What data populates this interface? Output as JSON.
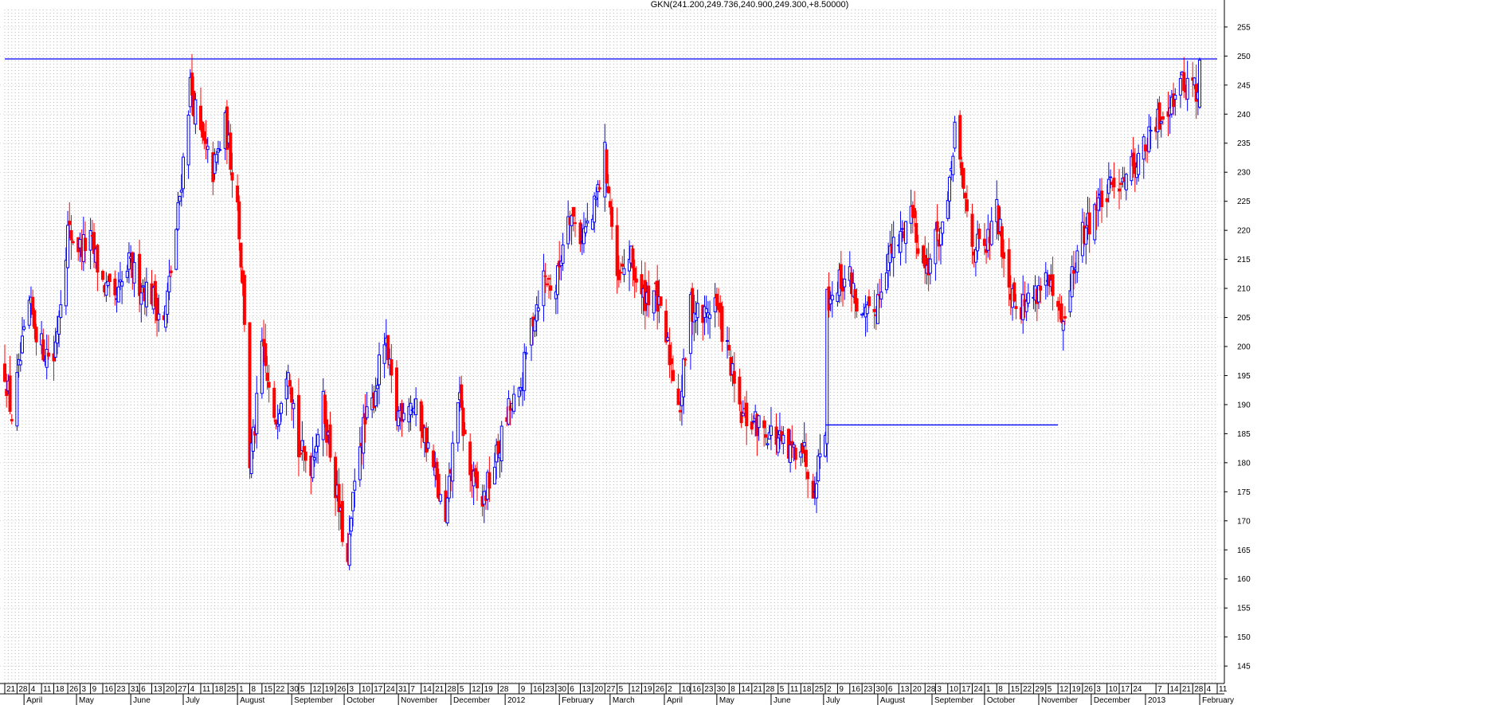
{
  "chart_data": {
    "type": "candlestick",
    "title": "GKN(241.200,249.736,240.900,249.300,+8.50000)",
    "ylim": [
      142,
      258
    ],
    "y_ticks": [
      145,
      150,
      155,
      160,
      165,
      170,
      175,
      180,
      185,
      190,
      195,
      200,
      205,
      210,
      215,
      220,
      225,
      230,
      235,
      240,
      245,
      250,
      255
    ],
    "x_range": [
      "2011-03-21",
      "2013-02-11"
    ],
    "grid": true,
    "colors": {
      "up": "#0000ff",
      "down": "#ff0000",
      "line": "#0000ff"
    },
    "reference_lines": [
      {
        "orientation": "horizontal",
        "value": 249.5,
        "from": "2011-03-21",
        "to": "2013-02-11"
      },
      {
        "orientation": "horizontal",
        "value": 186.5,
        "from": "2012-07-02",
        "to": "2012-11-12"
      }
    ],
    "close_path": [
      [
        "2011-03-21",
        196
      ],
      [
        "2011-03-25",
        188
      ],
      [
        "2011-04-04",
        207
      ],
      [
        "2011-04-11",
        200
      ],
      [
        "2011-04-18",
        198
      ],
      [
        "2011-04-26",
        220
      ],
      [
        "2011-05-03",
        217
      ],
      [
        "2011-05-09",
        218
      ],
      [
        "2011-05-16",
        211
      ],
      [
        "2011-05-23",
        207
      ],
      [
        "2011-05-31",
        214
      ],
      [
        "2011-06-06",
        211
      ],
      [
        "2011-06-13",
        209
      ],
      [
        "2011-06-20",
        204
      ],
      [
        "2011-06-27",
        220
      ],
      [
        "2011-07-01",
        232
      ],
      [
        "2011-07-05",
        245
      ],
      [
        "2011-07-11",
        236
      ],
      [
        "2011-07-18",
        230
      ],
      [
        "2011-07-25",
        238
      ],
      [
        "2011-08-01",
        225
      ],
      [
        "2011-08-05",
        205
      ],
      [
        "2011-08-08",
        180
      ],
      [
        "2011-08-11",
        186
      ],
      [
        "2011-08-15",
        200
      ],
      [
        "2011-08-22",
        186
      ],
      [
        "2011-08-30",
        198
      ],
      [
        "2011-09-05",
        182
      ],
      [
        "2011-09-12",
        180
      ],
      [
        "2011-09-19",
        190
      ],
      [
        "2011-09-26",
        176
      ],
      [
        "2011-10-03",
        162
      ],
      [
        "2011-10-05",
        170
      ],
      [
        "2011-10-10",
        184
      ],
      [
        "2011-10-17",
        190
      ],
      [
        "2011-10-24",
        201
      ],
      [
        "2011-10-31",
        188
      ],
      [
        "2011-11-07",
        191
      ],
      [
        "2011-11-14",
        187
      ],
      [
        "2011-11-21",
        179
      ],
      [
        "2011-11-28",
        169
      ],
      [
        "2011-12-05",
        192
      ],
      [
        "2011-12-12",
        178
      ],
      [
        "2011-12-19",
        173
      ],
      [
        "2011-12-28",
        182
      ],
      [
        "2012-01-03",
        189
      ],
      [
        "2012-01-09",
        191
      ],
      [
        "2012-01-16",
        204
      ],
      [
        "2012-01-23",
        212
      ],
      [
        "2012-01-30",
        210
      ],
      [
        "2012-02-06",
        224
      ],
      [
        "2012-02-13",
        219
      ],
      [
        "2012-02-20",
        222
      ],
      [
        "2012-02-27",
        233
      ],
      [
        "2012-03-01",
        224
      ],
      [
        "2012-03-05",
        210
      ],
      [
        "2012-03-12",
        216
      ],
      [
        "2012-03-19",
        208
      ],
      [
        "2012-03-26",
        210
      ],
      [
        "2012-04-02",
        201
      ],
      [
        "2012-04-10",
        190
      ],
      [
        "2012-04-16",
        207
      ],
      [
        "2012-04-23",
        205
      ],
      [
        "2012-04-30",
        208
      ],
      [
        "2012-05-08",
        198
      ],
      [
        "2012-05-14",
        188
      ],
      [
        "2012-05-21",
        187
      ],
      [
        "2012-05-28",
        186
      ],
      [
        "2012-06-05",
        184
      ],
      [
        "2012-06-11",
        181
      ],
      [
        "2012-06-18",
        184
      ],
      [
        "2012-06-25",
        176
      ],
      [
        "2012-06-28",
        180
      ],
      [
        "2012-07-02",
        187
      ],
      [
        "2012-07-03",
        208
      ],
      [
        "2012-07-09",
        211
      ],
      [
        "2012-07-16",
        212
      ],
      [
        "2012-07-23",
        204
      ],
      [
        "2012-07-30",
        206
      ],
      [
        "2012-08-06",
        215
      ],
      [
        "2012-08-13",
        218
      ],
      [
        "2012-08-20",
        224
      ],
      [
        "2012-08-28",
        213
      ],
      [
        "2012-09-03",
        218
      ],
      [
        "2012-09-10",
        223
      ],
      [
        "2012-09-14",
        238
      ],
      [
        "2012-09-17",
        230
      ],
      [
        "2012-09-24",
        218
      ],
      [
        "2012-10-01",
        216
      ],
      [
        "2012-10-08",
        223
      ],
      [
        "2012-10-15",
        211
      ],
      [
        "2012-10-22",
        207
      ],
      [
        "2012-10-29",
        209
      ],
      [
        "2012-11-05",
        212
      ],
      [
        "2012-11-12",
        205
      ],
      [
        "2012-11-16",
        203
      ],
      [
        "2012-11-19",
        211
      ],
      [
        "2012-11-26",
        219
      ],
      [
        "2012-12-03",
        224
      ],
      [
        "2012-12-10",
        226
      ],
      [
        "2012-12-17",
        229
      ],
      [
        "2012-12-24",
        231
      ],
      [
        "2013-01-02",
        235
      ],
      [
        "2013-01-07",
        238
      ],
      [
        "2013-01-14",
        242
      ],
      [
        "2013-01-21",
        245
      ],
      [
        "2013-01-28",
        246
      ],
      [
        "2013-01-31",
        242
      ],
      [
        "2013-02-01",
        249.3
      ]
    ],
    "x_ticks": [
      {
        "date": "2011-03-21",
        "label": "21"
      },
      {
        "date": "2011-03-28",
        "label": "28"
      },
      {
        "date": "2011-04-04",
        "label": "4"
      },
      {
        "date": "2011-04-11",
        "label": "11"
      },
      {
        "date": "2011-04-18",
        "label": "18"
      },
      {
        "date": "2011-04-26",
        "label": "26"
      },
      {
        "date": "2011-05-03",
        "label": "3"
      },
      {
        "date": "2011-05-09",
        "label": "9"
      },
      {
        "date": "2011-05-16",
        "label": "16"
      },
      {
        "date": "2011-05-23",
        "label": "23"
      },
      {
        "date": "2011-05-31",
        "label": "31"
      },
      {
        "date": "2011-06-06",
        "label": "6"
      },
      {
        "date": "2011-06-13",
        "label": "13"
      },
      {
        "date": "2011-06-20",
        "label": "20"
      },
      {
        "date": "2011-06-27",
        "label": "27"
      },
      {
        "date": "2011-07-04",
        "label": "4"
      },
      {
        "date": "2011-07-11",
        "label": "11"
      },
      {
        "date": "2011-07-18",
        "label": "18"
      },
      {
        "date": "2011-07-25",
        "label": "25"
      },
      {
        "date": "2011-08-01",
        "label": "1"
      },
      {
        "date": "2011-08-08",
        "label": "8"
      },
      {
        "date": "2011-08-15",
        "label": "15"
      },
      {
        "date": "2011-08-22",
        "label": "22"
      },
      {
        "date": "2011-08-30",
        "label": "30"
      },
      {
        "date": "2011-09-05",
        "label": "5"
      },
      {
        "date": "2011-09-12",
        "label": "12"
      },
      {
        "date": "2011-09-19",
        "label": "19"
      },
      {
        "date": "2011-09-26",
        "label": "26"
      },
      {
        "date": "2011-10-03",
        "label": "3"
      },
      {
        "date": "2011-10-10",
        "label": "10"
      },
      {
        "date": "2011-10-17",
        "label": "17"
      },
      {
        "date": "2011-10-24",
        "label": "24"
      },
      {
        "date": "2011-10-31",
        "label": "31"
      },
      {
        "date": "2011-11-07",
        "label": "7"
      },
      {
        "date": "2011-11-14",
        "label": "14"
      },
      {
        "date": "2011-11-21",
        "label": "21"
      },
      {
        "date": "2011-11-28",
        "label": "28"
      },
      {
        "date": "2011-12-05",
        "label": "5"
      },
      {
        "date": "2011-12-12",
        "label": "12"
      },
      {
        "date": "2011-12-19",
        "label": "19"
      },
      {
        "date": "2011-12-28",
        "label": "28"
      },
      {
        "date": "2012-01-09",
        "label": "9"
      },
      {
        "date": "2012-01-16",
        "label": "16"
      },
      {
        "date": "2012-01-23",
        "label": "23"
      },
      {
        "date": "2012-01-30",
        "label": "30"
      },
      {
        "date": "2012-02-06",
        "label": "6"
      },
      {
        "date": "2012-02-13",
        "label": "13"
      },
      {
        "date": "2012-02-20",
        "label": "20"
      },
      {
        "date": "2012-02-27",
        "label": "27"
      },
      {
        "date": "2012-03-05",
        "label": "5"
      },
      {
        "date": "2012-03-12",
        "label": "12"
      },
      {
        "date": "2012-03-19",
        "label": "19"
      },
      {
        "date": "2012-03-26",
        "label": "26"
      },
      {
        "date": "2012-04-02",
        "label": "2"
      },
      {
        "date": "2012-04-10",
        "label": "10"
      },
      {
        "date": "2012-04-16",
        "label": "16"
      },
      {
        "date": "2012-04-23",
        "label": "23"
      },
      {
        "date": "2012-04-30",
        "label": "30"
      },
      {
        "date": "2012-05-08",
        "label": "8"
      },
      {
        "date": "2012-05-14",
        "label": "14"
      },
      {
        "date": "2012-05-21",
        "label": "21"
      },
      {
        "date": "2012-05-28",
        "label": "28"
      },
      {
        "date": "2012-06-05",
        "label": "5"
      },
      {
        "date": "2012-06-11",
        "label": "11"
      },
      {
        "date": "2012-06-18",
        "label": "18"
      },
      {
        "date": "2012-06-25",
        "label": "25"
      },
      {
        "date": "2012-07-02",
        "label": "2"
      },
      {
        "date": "2012-07-09",
        "label": "9"
      },
      {
        "date": "2012-07-16",
        "label": "16"
      },
      {
        "date": "2012-07-23",
        "label": "23"
      },
      {
        "date": "2012-07-30",
        "label": "30"
      },
      {
        "date": "2012-08-06",
        "label": "6"
      },
      {
        "date": "2012-08-13",
        "label": "13"
      },
      {
        "date": "2012-08-20",
        "label": "20"
      },
      {
        "date": "2012-08-28",
        "label": "28"
      },
      {
        "date": "2012-09-03",
        "label": "3"
      },
      {
        "date": "2012-09-10",
        "label": "10"
      },
      {
        "date": "2012-09-17",
        "label": "17"
      },
      {
        "date": "2012-09-24",
        "label": "24"
      },
      {
        "date": "2012-10-01",
        "label": "1"
      },
      {
        "date": "2012-10-08",
        "label": "8"
      },
      {
        "date": "2012-10-15",
        "label": "15"
      },
      {
        "date": "2012-10-22",
        "label": "22"
      },
      {
        "date": "2012-10-29",
        "label": "29"
      },
      {
        "date": "2012-11-05",
        "label": "5"
      },
      {
        "date": "2012-11-12",
        "label": "12"
      },
      {
        "date": "2012-11-19",
        "label": "19"
      },
      {
        "date": "2012-11-26",
        "label": "26"
      },
      {
        "date": "2012-12-03",
        "label": "3"
      },
      {
        "date": "2012-12-10",
        "label": "10"
      },
      {
        "date": "2012-12-17",
        "label": "17"
      },
      {
        "date": "2012-12-24",
        "label": "24"
      },
      {
        "date": "2013-01-07",
        "label": "7"
      },
      {
        "date": "2013-01-14",
        "label": "14"
      },
      {
        "date": "2013-01-21",
        "label": "21"
      },
      {
        "date": "2013-01-28",
        "label": "28"
      },
      {
        "date": "2013-02-04",
        "label": "4"
      },
      {
        "date": "2013-02-11",
        "label": "11"
      }
    ],
    "month_labels": [
      {
        "date": "2011-04-01",
        "label": "April"
      },
      {
        "date": "2011-05-01",
        "label": "May"
      },
      {
        "date": "2011-06-01",
        "label": "June"
      },
      {
        "date": "2011-07-01",
        "label": "July"
      },
      {
        "date": "2011-08-01",
        "label": "August"
      },
      {
        "date": "2011-09-01",
        "label": "September"
      },
      {
        "date": "2011-10-01",
        "label": "October"
      },
      {
        "date": "2011-11-01",
        "label": "November"
      },
      {
        "date": "2011-12-01",
        "label": "December"
      },
      {
        "date": "2012-01-01",
        "label": "2012"
      },
      {
        "date": "2012-02-01",
        "label": "February"
      },
      {
        "date": "2012-03-01",
        "label": "March"
      },
      {
        "date": "2012-04-01",
        "label": "April"
      },
      {
        "date": "2012-05-01",
        "label": "May"
      },
      {
        "date": "2012-06-01",
        "label": "June"
      },
      {
        "date": "2012-07-01",
        "label": "July"
      },
      {
        "date": "2012-08-01",
        "label": "August"
      },
      {
        "date": "2012-09-01",
        "label": "September"
      },
      {
        "date": "2012-10-01",
        "label": "October"
      },
      {
        "date": "2012-11-01",
        "label": "November"
      },
      {
        "date": "2012-12-01",
        "label": "December"
      },
      {
        "date": "2013-01-01",
        "label": "2013"
      },
      {
        "date": "2013-02-01",
        "label": "February"
      }
    ]
  }
}
